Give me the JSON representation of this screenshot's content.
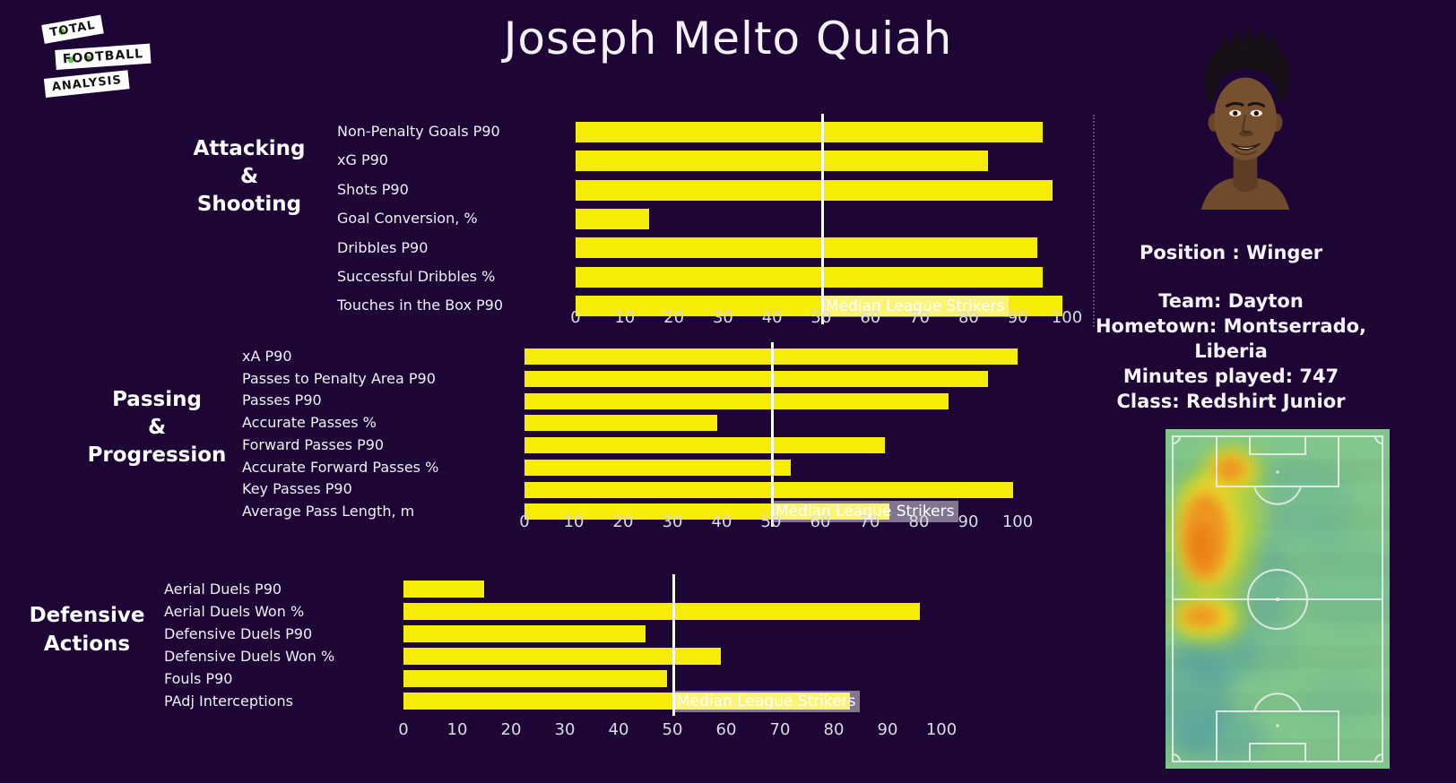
{
  "title": "Joseph Melto Quiah",
  "logo": {
    "lines": [
      "TOTAL",
      "FOOTBALL",
      "ANALYSIS"
    ]
  },
  "player": {
    "position_label": "Position : Winger",
    "team": "Team: Dayton",
    "hometown_line1": "Hometown: Montserrado,",
    "hometown_line2": "Liberia",
    "minutes": "Minutes played: 747",
    "class": "Class: Redshirt Junior"
  },
  "colors": {
    "background": "#1d0536",
    "bar": "#f7ec07",
    "median_line": "#ffffff",
    "pitch_green": "#82c68b",
    "heat_hot": "#ee9121",
    "heat_cold": "#4e9aa4"
  },
  "chart_data": [
    {
      "type": "bar",
      "orientation": "horizontal",
      "title": "Attacking & Shooting",
      "title_lines": [
        "Attacking",
        "&",
        "Shooting"
      ],
      "categories": [
        "Non-Penalty Goals P90",
        "xG P90",
        "Shots P90",
        "Goal Conversion, %",
        "Dribbles P90",
        "Successful Dribbles %",
        "Touches in the Box P90"
      ],
      "values": [
        95,
        84,
        97,
        15,
        94,
        95,
        99
      ],
      "xlim": [
        0,
        100
      ],
      "xticks": [
        0,
        10,
        20,
        30,
        40,
        50,
        60,
        70,
        80,
        90,
        100
      ],
      "median_line_value": 50,
      "median_label": "Median League Strikers",
      "grid": false,
      "legend": "none"
    },
    {
      "type": "bar",
      "orientation": "horizontal",
      "title": "Passing & Progression",
      "title_lines": [
        "Passing",
        "&",
        "Progression"
      ],
      "categories": [
        "xA P90",
        "Passes to Penalty Area P90",
        "Passes P90",
        "Accurate Passes %",
        "Forward Passes P90",
        "Accurate Forward Passes %",
        "Key Passes P90",
        "Average Pass Length, m"
      ],
      "values": [
        100,
        94,
        86,
        39,
        73,
        54,
        99,
        74
      ],
      "xlim": [
        0,
        100
      ],
      "xticks": [
        0,
        10,
        20,
        30,
        40,
        50,
        60,
        70,
        80,
        90,
        100
      ],
      "median_line_value": 50,
      "median_label": "Median League Strikers",
      "grid": false,
      "legend": "none"
    },
    {
      "type": "bar",
      "orientation": "horizontal",
      "title": "Defensive Actions",
      "title_lines": [
        "Defensive",
        "Actions"
      ],
      "categories": [
        "Aerial Duels P90",
        "Aerial Duels Won %",
        "Defensive Duels P90",
        "Defensive Duels Won %",
        "Fouls P90",
        "PAdj Interceptions"
      ],
      "values": [
        15,
        96,
        45,
        59,
        49,
        83
      ],
      "xlim": [
        0,
        100
      ],
      "xticks": [
        0,
        10,
        20,
        30,
        40,
        50,
        60,
        70,
        80,
        90,
        100
      ],
      "median_line_value": 50,
      "median_label": "Median League Strikers",
      "grid": false,
      "legend": "none"
    }
  ]
}
